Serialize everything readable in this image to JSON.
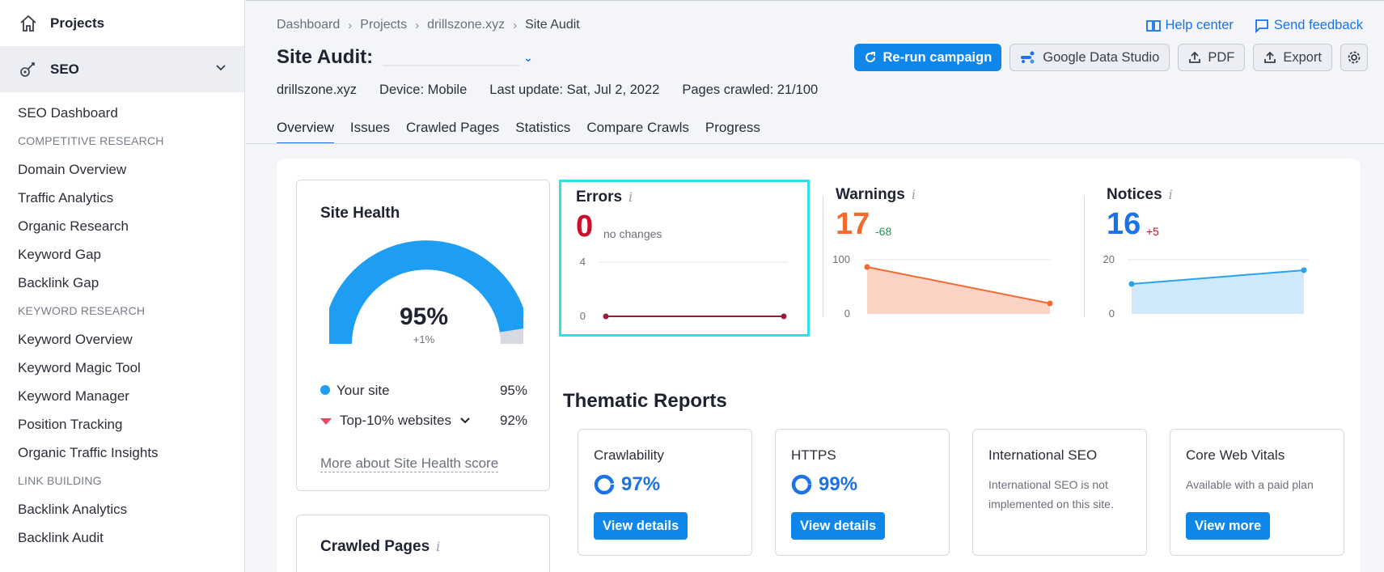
{
  "sidebar": {
    "projects_label": "Projects",
    "seo_label": "SEO",
    "dashboard": "SEO Dashboard",
    "sections": [
      {
        "heading": "COMPETITIVE RESEARCH",
        "items": [
          "Domain Overview",
          "Traffic Analytics",
          "Organic Research",
          "Keyword Gap",
          "Backlink Gap"
        ]
      },
      {
        "heading": "KEYWORD RESEARCH",
        "items": [
          "Keyword Overview",
          "Keyword Magic Tool",
          "Keyword Manager",
          "Position Tracking",
          "Organic Traffic Insights"
        ]
      },
      {
        "heading": "LINK BUILDING",
        "items": [
          "Backlink Analytics",
          "Backlink Audit"
        ]
      }
    ]
  },
  "breadcrumb": [
    "Dashboard",
    "Projects",
    "drillszone.xyz",
    "Site Audit"
  ],
  "header": {
    "help_center": "Help center",
    "send_feedback": "Send feedback",
    "title": "Site Audit:",
    "rerun": "Re-run campaign",
    "gds": "Google Data Studio",
    "pdf": "PDF",
    "export": "Export"
  },
  "meta": {
    "domain": "drillszone.xyz",
    "device": "Device: Mobile",
    "last_update": "Last update: Sat, Jul 2, 2022",
    "pages_crawled": "Pages crawled: 21/100"
  },
  "tabs": [
    "Overview",
    "Issues",
    "Crawled Pages",
    "Statistics",
    "Compare Crawls",
    "Progress"
  ],
  "site_health": {
    "title": "Site Health",
    "value": "95%",
    "value_fraction": 0.95,
    "delta": "+1%",
    "your_site_label": "Your site",
    "your_site_value": "95%",
    "top_label": "Top-10% websites",
    "top_value": "92%",
    "top_fraction": 0.92,
    "more_link": "More about Site Health score"
  },
  "crawled_pages": {
    "title": "Crawled Pages"
  },
  "metrics": {
    "errors": {
      "title": "Errors",
      "value": "0",
      "change": "no changes",
      "ymax": "4",
      "ymin": "0",
      "color": "#c8102e"
    },
    "warnings": {
      "title": "Warnings",
      "value": "17",
      "change": "-68",
      "ymax": "100",
      "ymin": "0",
      "color": "#f26a2e"
    },
    "notices": {
      "title": "Notices",
      "value": "16",
      "change": "+5",
      "ymax": "20",
      "ymin": "0",
      "color": "#1a73e8"
    }
  },
  "thematic": {
    "title": "Thematic Reports",
    "reports": [
      {
        "title": "Crawlability",
        "value": "97%",
        "button": "View details"
      },
      {
        "title": "HTTPS",
        "value": "99%",
        "button": "View details"
      },
      {
        "title": "International SEO",
        "note": "International SEO is not implemented on this site."
      },
      {
        "title": "Core Web Vitals",
        "note": "Available with a paid plan",
        "button": "View more"
      }
    ]
  },
  "icons": {
    "projects": "home-icon",
    "seo": "seo-icon",
    "help": "book-icon",
    "feedback": "chat-icon",
    "rerun": "refresh-icon",
    "gds": "data-studio-icon",
    "pdf": "upload-icon",
    "export": "upload-icon",
    "settings": "gear-icon"
  }
}
